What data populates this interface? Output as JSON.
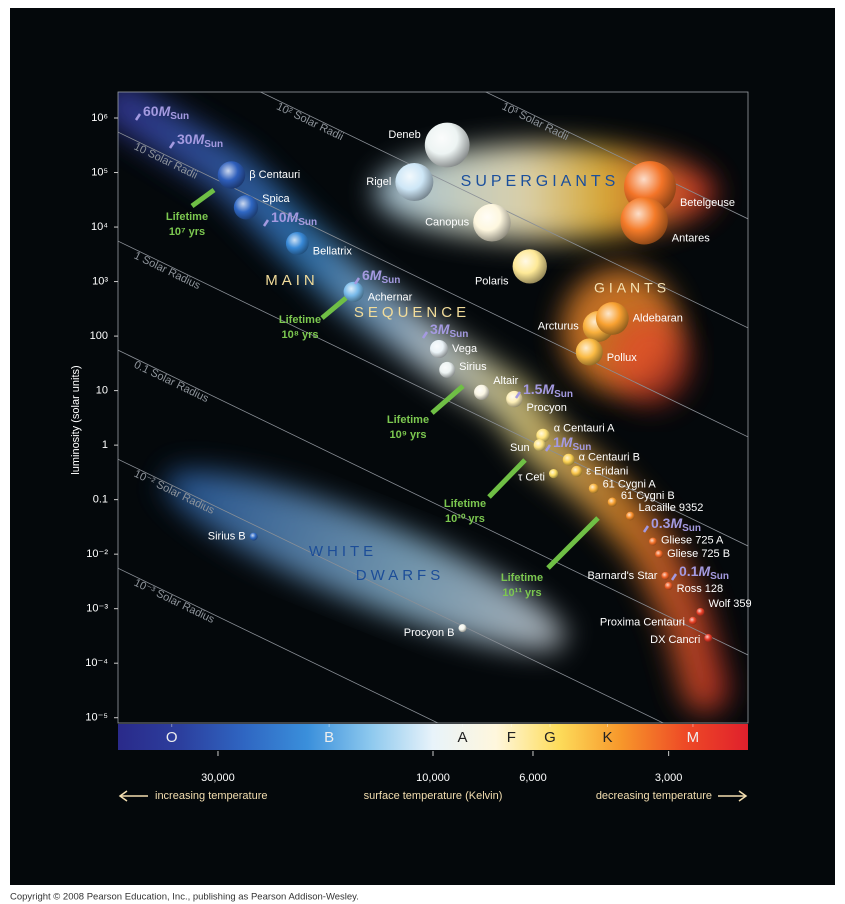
{
  "chart_data": {
    "type": "scatter",
    "xscale": "log",
    "yscale": "log",
    "xlim": [
      50000,
      2000
    ],
    "ylim": [
      8e-06,
      3000000
    ],
    "xticks": [
      {
        "value": 30000,
        "label": "30,000"
      },
      {
        "value": 10000,
        "label": "10,000"
      },
      {
        "value": 6000,
        "label": "6,000"
      },
      {
        "value": 3000,
        "label": "3,000"
      }
    ],
    "yticks": [
      {
        "value": 1000000,
        "label": "10⁶"
      },
      {
        "value": 100000,
        "label": "10⁵"
      },
      {
        "value": 10000,
        "label": "10⁴"
      },
      {
        "value": 1000,
        "label": "10³"
      },
      100,
      10,
      1,
      0.1,
      {
        "value": 0.01,
        "label": "10⁻²"
      },
      {
        "value": 0.001,
        "label": "10⁻³"
      },
      {
        "value": 0.0001,
        "label": "10⁻⁴"
      },
      {
        "value": 1e-05,
        "label": "10⁻⁵"
      }
    ],
    "ylabel": "luminosity (solar units)",
    "xlabel": "surface temperature (Kelvin)",
    "x_left_note": "increasing temperature",
    "x_right_note": "decreasing temperature",
    "colormap": [
      "#2a2a8a",
      "#2c3f9e",
      "#2f66c2",
      "#3a8fdb",
      "#8cc8ee",
      "#e8f3fa",
      "#fff7dd",
      "#fddc5a",
      "#f7962a",
      "#ee4a26",
      "#e0202c"
    ],
    "spectral_ticks": [
      {
        "value": 38000,
        "label": "O"
      },
      {
        "value": 17000,
        "label": "B"
      },
      {
        "value": 8600,
        "label": "A"
      },
      {
        "value": 6700,
        "label": "F"
      },
      {
        "value": 5500,
        "label": "G"
      },
      {
        "value": 4100,
        "label": "K"
      },
      {
        "value": 2650,
        "label": "M"
      }
    ],
    "point_labels": [
      "Deneb",
      "Rigel",
      "Canopus",
      "Polaris",
      "Betelgeuse",
      "Antares",
      "β Centauri",
      "Spica",
      "Bellatrix",
      "Achernar",
      "Vega",
      "Sirius",
      "Altair",
      "Procyon",
      "Arcturus",
      "Aldebaran",
      "Pollux",
      "α Centauri A",
      "Sun",
      "α Centauri B",
      "ε Eridani",
      "τ Ceti",
      "61 Cygni A",
      "61 Cygni B",
      "Lacaille 9352",
      "Gliese 725 A",
      "Gliese 725 B",
      "Barnard's Star",
      "Ross 128",
      "Wolf 359",
      "Proxima Centauri",
      "DX Cancri",
      "Sirius B",
      "Procyon B"
    ],
    "x": [
      9300,
      11000,
      7400,
      6100,
      3300,
      3400,
      28000,
      26000,
      20000,
      15000,
      9700,
      9300,
      7800,
      6600,
      4300,
      4000,
      4500,
      5700,
      5800,
      5000,
      4800,
      5400,
      4400,
      4000,
      3650,
      3250,
      3150,
      3050,
      3000,
      2550,
      2650,
      2450,
      25000,
      8600
    ],
    "values": [
      320000,
      67000,
      12000,
      1900,
      54000,
      13000,
      90000,
      23000,
      5000,
      650,
      58,
      24,
      9.3,
      7,
      150,
      210,
      51,
      1.5,
      1,
      0.54,
      0.33,
      0.3,
      0.16,
      0.09,
      0.05,
      0.017,
      0.01,
      0.004,
      0.0026,
      0.00087,
      0.0006,
      0.00029,
      0.021,
      0.00044
    ],
    "radius_lines": [
      {
        "value": 1000,
        "label": "10³ Solar Radii"
      },
      {
        "value": 100,
        "label": "10² Solar Radii"
      },
      {
        "value": 10,
        "label": "10 Solar Radii"
      },
      {
        "value": 1,
        "label": "1 Solar Radius"
      },
      {
        "value": 0.1,
        "label": "0.1 Solar Radius"
      },
      {
        "value": 0.01,
        "label": "10⁻² Solar Radius"
      },
      {
        "value": 0.001,
        "label": "10⁻³ Solar Radius"
      }
    ],
    "mass_unit": "M",
    "mass_unit_sub": "Sun",
    "masses": [
      60,
      30,
      10,
      6,
      3,
      1.5,
      1,
      0.3,
      0.1
    ],
    "lifetime_label": "Lifetime",
    "lifetimes": [
      "10⁷ yrs",
      "10⁸ yrs",
      "10⁹ yrs",
      "10¹⁰ yrs",
      "10¹¹ yrs"
    ],
    "regions": [
      "SUPERGIANTS",
      "GIANTS",
      "MAIN",
      "SEQUENCE",
      "WHITE",
      "DWARFS"
    ],
    "copyright": "Copyright © 2008 Pearson Education, Inc., publishing as Pearson Addison-Wesley."
  }
}
